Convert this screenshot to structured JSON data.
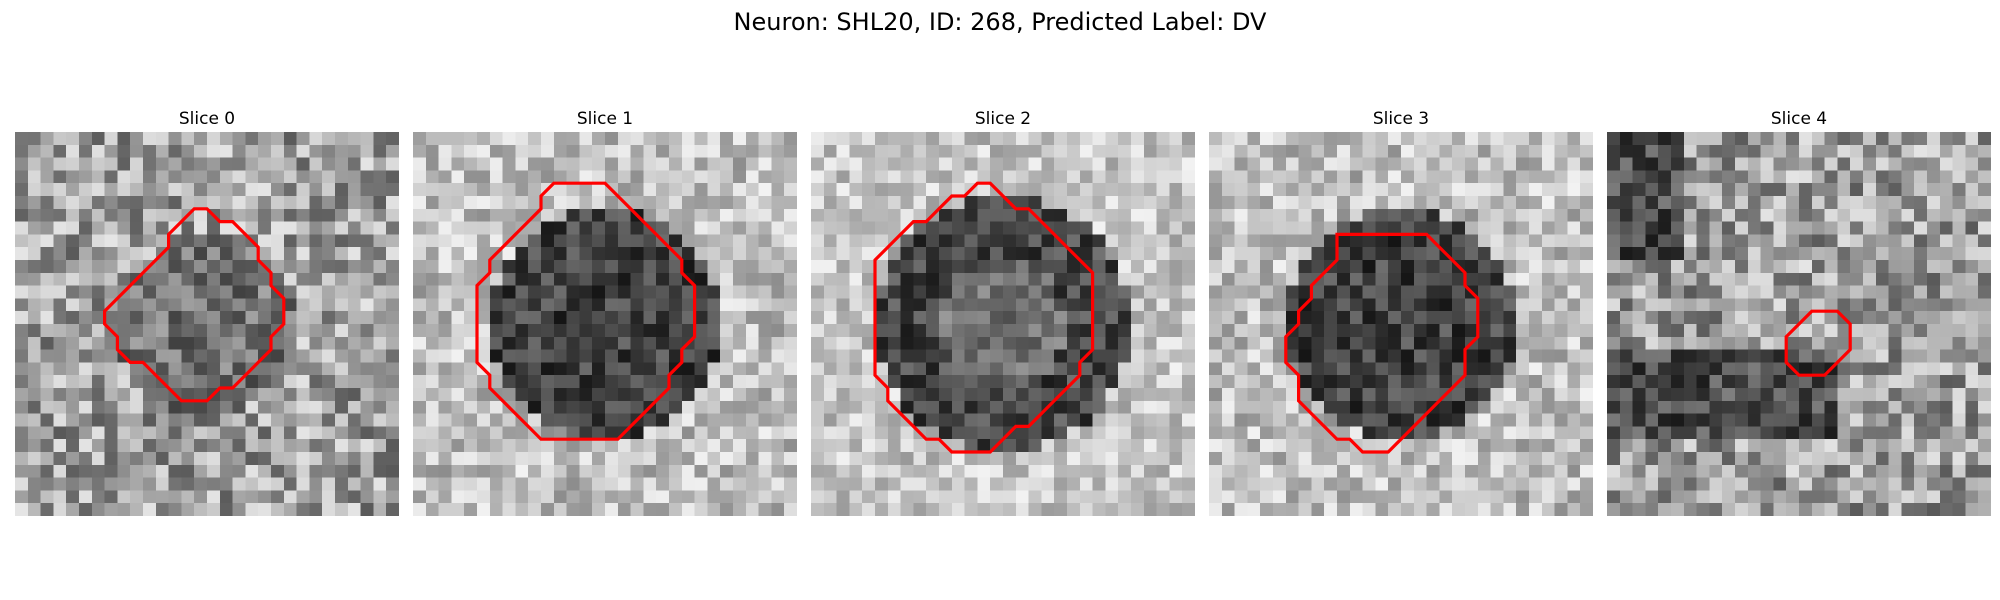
{
  "figure": {
    "title": "Neuron: SHL20, ID: 268, Predicted Label: DV",
    "contour_color": "#ff0000"
  },
  "panels": [
    {
      "title": "Slice 0",
      "seed": 11,
      "tone": "mid",
      "contour": [
        [
          14,
          6
        ],
        [
          15,
          6
        ],
        [
          16,
          7
        ],
        [
          17,
          7
        ],
        [
          18,
          8
        ],
        [
          19,
          9
        ],
        [
          19,
          10
        ],
        [
          20,
          11
        ],
        [
          20,
          12
        ],
        [
          21,
          13
        ],
        [
          21,
          14
        ],
        [
          21,
          15
        ],
        [
          20,
          16
        ],
        [
          20,
          17
        ],
        [
          19,
          18
        ],
        [
          18,
          19
        ],
        [
          17,
          20
        ],
        [
          16,
          20
        ],
        [
          15,
          21
        ],
        [
          14,
          21
        ],
        [
          13,
          21
        ],
        [
          12,
          20
        ],
        [
          11,
          19
        ],
        [
          10,
          18
        ],
        [
          9,
          18
        ],
        [
          8,
          17
        ],
        [
          8,
          16
        ],
        [
          7,
          15
        ],
        [
          7,
          14
        ],
        [
          8,
          13
        ],
        [
          9,
          12
        ],
        [
          10,
          11
        ],
        [
          11,
          10
        ],
        [
          12,
          9
        ],
        [
          12,
          8
        ],
        [
          13,
          7
        ]
      ]
    },
    {
      "title": "Slice 1",
      "seed": 23,
      "tone": "dark-center",
      "contour": [
        [
          11,
          4
        ],
        [
          12,
          4
        ],
        [
          13,
          4
        ],
        [
          14,
          4
        ],
        [
          15,
          4
        ],
        [
          16,
          5
        ],
        [
          17,
          6
        ],
        [
          18,
          7
        ],
        [
          19,
          8
        ],
        [
          20,
          9
        ],
        [
          21,
          10
        ],
        [
          21,
          11
        ],
        [
          22,
          12
        ],
        [
          22,
          13
        ],
        [
          22,
          14
        ],
        [
          22,
          15
        ],
        [
          22,
          16
        ],
        [
          21,
          17
        ],
        [
          21,
          18
        ],
        [
          20,
          19
        ],
        [
          20,
          20
        ],
        [
          19,
          21
        ],
        [
          18,
          22
        ],
        [
          17,
          23
        ],
        [
          16,
          24
        ],
        [
          15,
          24
        ],
        [
          14,
          24
        ],
        [
          13,
          24
        ],
        [
          12,
          24
        ],
        [
          11,
          24
        ],
        [
          10,
          24
        ],
        [
          9,
          23
        ],
        [
          8,
          22
        ],
        [
          7,
          21
        ],
        [
          6,
          20
        ],
        [
          6,
          19
        ],
        [
          5,
          18
        ],
        [
          5,
          17
        ],
        [
          5,
          16
        ],
        [
          5,
          15
        ],
        [
          5,
          14
        ],
        [
          5,
          13
        ],
        [
          5,
          12
        ],
        [
          6,
          11
        ],
        [
          6,
          10
        ],
        [
          7,
          9
        ],
        [
          8,
          8
        ],
        [
          9,
          7
        ],
        [
          10,
          6
        ],
        [
          10,
          5
        ]
      ]
    },
    {
      "title": "Slice 2",
      "seed": 37,
      "tone": "dark-ring",
      "contour": [
        [
          13,
          4
        ],
        [
          14,
          4
        ],
        [
          15,
          5
        ],
        [
          16,
          6
        ],
        [
          17,
          6
        ],
        [
          18,
          7
        ],
        [
          19,
          8
        ],
        [
          20,
          9
        ],
        [
          21,
          10
        ],
        [
          22,
          11
        ],
        [
          22,
          12
        ],
        [
          22,
          13
        ],
        [
          22,
          14
        ],
        [
          22,
          15
        ],
        [
          22,
          16
        ],
        [
          22,
          17
        ],
        [
          21,
          18
        ],
        [
          21,
          19
        ],
        [
          20,
          20
        ],
        [
          19,
          21
        ],
        [
          18,
          22
        ],
        [
          17,
          23
        ],
        [
          16,
          23
        ],
        [
          15,
          24
        ],
        [
          14,
          25
        ],
        [
          13,
          25
        ],
        [
          12,
          25
        ],
        [
          11,
          25
        ],
        [
          10,
          24
        ],
        [
          9,
          24
        ],
        [
          8,
          23
        ],
        [
          7,
          22
        ],
        [
          6,
          21
        ],
        [
          6,
          20
        ],
        [
          5,
          19
        ],
        [
          5,
          18
        ],
        [
          5,
          17
        ],
        [
          5,
          16
        ],
        [
          5,
          15
        ],
        [
          5,
          14
        ],
        [
          5,
          13
        ],
        [
          5,
          12
        ],
        [
          5,
          11
        ],
        [
          5,
          10
        ],
        [
          6,
          9
        ],
        [
          7,
          8
        ],
        [
          8,
          7
        ],
        [
          9,
          7
        ],
        [
          10,
          6
        ],
        [
          11,
          5
        ],
        [
          12,
          5
        ]
      ]
    },
    {
      "title": "Slice 3",
      "seed": 41,
      "tone": "dark-center",
      "contour": [
        [
          10,
          8
        ],
        [
          11,
          8
        ],
        [
          12,
          8
        ],
        [
          13,
          8
        ],
        [
          14,
          8
        ],
        [
          15,
          8
        ],
        [
          16,
          8
        ],
        [
          17,
          8
        ],
        [
          18,
          9
        ],
        [
          19,
          10
        ],
        [
          20,
          11
        ],
        [
          20,
          12
        ],
        [
          21,
          13
        ],
        [
          21,
          14
        ],
        [
          21,
          15
        ],
        [
          21,
          16
        ],
        [
          20,
          17
        ],
        [
          20,
          18
        ],
        [
          20,
          19
        ],
        [
          19,
          20
        ],
        [
          18,
          21
        ],
        [
          17,
          22
        ],
        [
          16,
          23
        ],
        [
          15,
          24
        ],
        [
          14,
          25
        ],
        [
          13,
          25
        ],
        [
          12,
          25
        ],
        [
          11,
          24
        ],
        [
          10,
          24
        ],
        [
          9,
          23
        ],
        [
          8,
          22
        ],
        [
          7,
          21
        ],
        [
          7,
          20
        ],
        [
          7,
          19
        ],
        [
          6,
          18
        ],
        [
          6,
          17
        ],
        [
          6,
          16
        ],
        [
          7,
          15
        ],
        [
          7,
          14
        ],
        [
          8,
          13
        ],
        [
          8,
          12
        ],
        [
          9,
          11
        ],
        [
          10,
          10
        ],
        [
          10,
          9
        ]
      ]
    },
    {
      "title": "Slice 4",
      "seed": 53,
      "tone": "streaks",
      "contour": [
        [
          16,
          14
        ],
        [
          17,
          14
        ],
        [
          18,
          14
        ],
        [
          19,
          15
        ],
        [
          19,
          16
        ],
        [
          19,
          17
        ],
        [
          18,
          18
        ],
        [
          17,
          19
        ],
        [
          16,
          19
        ],
        [
          15,
          19
        ],
        [
          14,
          18
        ],
        [
          14,
          17
        ],
        [
          14,
          16
        ],
        [
          15,
          15
        ]
      ]
    }
  ]
}
